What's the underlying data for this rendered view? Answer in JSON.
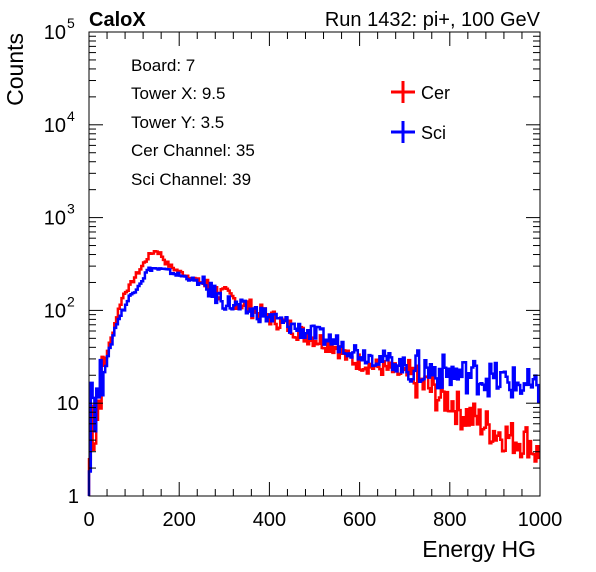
{
  "header": {
    "brand": "CaloX",
    "run": "Run 1432: pi+, 100 GeV"
  },
  "info_box": {
    "lines": [
      "Board: 7",
      "Tower X: 9.5",
      "Tower Y: 3.5",
      "Cer Channel: 35",
      "Sci Channel: 39"
    ]
  },
  "legend": {
    "placement": "top-right",
    "entries": [
      {
        "label": "Cer",
        "color": "#ff0000"
      },
      {
        "label": "Sci",
        "color": "#0000ff"
      }
    ]
  },
  "chart_data": {
    "type": "line",
    "title": "",
    "xlabel": "Energy HG",
    "ylabel": "Counts",
    "xlim": [
      0,
      1000
    ],
    "ylim": [
      1,
      100000
    ],
    "yscale": "log",
    "grid": false,
    "x_ticks": [
      0,
      200,
      400,
      600,
      800,
      1000
    ],
    "x_tick_labels": [
      "0",
      "200",
      "400",
      "600",
      "800",
      "1000"
    ],
    "y_ticks": [
      1,
      10,
      100,
      1000,
      10000,
      100000
    ],
    "y_tick_labels": [
      {
        "base": "1",
        "exp": ""
      },
      {
        "base": "10",
        "exp": ""
      },
      {
        "base": "10",
        "exp": "2"
      },
      {
        "base": "10",
        "exp": "3"
      },
      {
        "base": "10",
        "exp": "4"
      },
      {
        "base": "10",
        "exp": "5"
      }
    ],
    "series": [
      {
        "name": "Cer",
        "color": "#ff0000",
        "points": [
          [
            0,
            1
          ],
          [
            5,
            10
          ],
          [
            10,
            5
          ],
          [
            15,
            5
          ],
          [
            20,
            9
          ],
          [
            30,
            20
          ],
          [
            40,
            35
          ],
          [
            50,
            50
          ],
          [
            60,
            80
          ],
          [
            70,
            120
          ],
          [
            80,
            160
          ],
          [
            90,
            180
          ],
          [
            100,
            220
          ],
          [
            110,
            260
          ],
          [
            120,
            310
          ],
          [
            130,
            370
          ],
          [
            140,
            420
          ],
          [
            150,
            440
          ],
          [
            160,
            400
          ],
          [
            170,
            330
          ],
          [
            180,
            300
          ],
          [
            200,
            260
          ],
          [
            225,
            230
          ],
          [
            250,
            200
          ],
          [
            275,
            165
          ],
          [
            300,
            145
          ],
          [
            325,
            130
          ],
          [
            350,
            112
          ],
          [
            375,
            95
          ],
          [
            400,
            85
          ],
          [
            425,
            75
          ],
          [
            450,
            65
          ],
          [
            475,
            55
          ],
          [
            500,
            50
          ],
          [
            525,
            45
          ],
          [
            550,
            40
          ],
          [
            575,
            30
          ],
          [
            600,
            28
          ],
          [
            625,
            25
          ],
          [
            650,
            24
          ],
          [
            675,
            22
          ],
          [
            700,
            20
          ],
          [
            725,
            17
          ],
          [
            750,
            15
          ],
          [
            775,
            12
          ],
          [
            800,
            11
          ],
          [
            825,
            8
          ],
          [
            850,
            7
          ],
          [
            875,
            6
          ],
          [
            900,
            5
          ],
          [
            925,
            4.5
          ],
          [
            950,
            4
          ],
          [
            975,
            4
          ],
          [
            990,
            3
          ],
          [
            1000,
            2.5
          ]
        ]
      },
      {
        "name": "Sci",
        "color": "#0000ff",
        "points": [
          [
            0,
            1
          ],
          [
            5,
            20
          ],
          [
            10,
            12
          ],
          [
            15,
            8
          ],
          [
            20,
            13
          ],
          [
            30,
            20
          ],
          [
            40,
            28
          ],
          [
            50,
            45
          ],
          [
            60,
            70
          ],
          [
            70,
            90
          ],
          [
            80,
            110
          ],
          [
            90,
            140
          ],
          [
            100,
            160
          ],
          [
            110,
            190
          ],
          [
            120,
            220
          ],
          [
            130,
            270
          ],
          [
            140,
            285
          ],
          [
            150,
            280
          ],
          [
            160,
            275
          ],
          [
            170,
            270
          ],
          [
            180,
            260
          ],
          [
            200,
            240
          ],
          [
            225,
            220
          ],
          [
            250,
            190
          ],
          [
            275,
            155
          ],
          [
            300,
            125
          ],
          [
            325,
            110
          ],
          [
            350,
            100
          ],
          [
            375,
            95
          ],
          [
            400,
            85
          ],
          [
            425,
            75
          ],
          [
            450,
            68
          ],
          [
            475,
            60
          ],
          [
            500,
            55
          ],
          [
            525,
            50
          ],
          [
            550,
            45
          ],
          [
            575,
            40
          ],
          [
            600,
            35
          ],
          [
            625,
            32
          ],
          [
            650,
            30
          ],
          [
            675,
            28
          ],
          [
            700,
            25
          ],
          [
            725,
            24
          ],
          [
            750,
            23
          ],
          [
            775,
            22
          ],
          [
            800,
            21
          ],
          [
            825,
            20
          ],
          [
            850,
            20
          ],
          [
            875,
            19
          ],
          [
            900,
            18
          ],
          [
            925,
            17
          ],
          [
            950,
            16
          ],
          [
            975,
            15
          ],
          [
            990,
            13
          ],
          [
            1000,
            12
          ]
        ]
      }
    ]
  }
}
